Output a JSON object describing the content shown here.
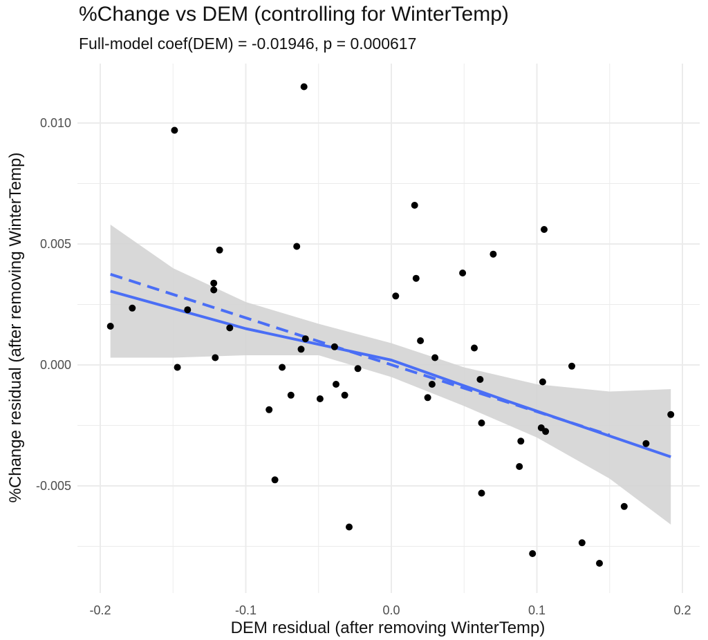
{
  "chart_data": {
    "type": "scatter",
    "title": "%Change vs DEM (controlling for WinterTemp)",
    "subtitle": "Full-model coef(DEM) = -0.01946, p = 0.000617",
    "xlabel": "DEM residual (after removing WinterTemp)",
    "ylabel": "%Change residual (after removing WinterTemp)",
    "xlim": [
      -0.2,
      0.2
    ],
    "ylim": [
      -0.0093,
      0.0125
    ],
    "x_ticks": [
      -0.2,
      -0.1,
      0.0,
      0.1,
      0.2
    ],
    "x_tick_labels": [
      "-0.2",
      "-0.1",
      "0.0",
      "0.1",
      "0.2"
    ],
    "y_ticks": [
      -0.005,
      0.0,
      0.005,
      0.01
    ],
    "y_tick_labels": [
      "-0.005",
      "0.000",
      "0.005",
      "0.010"
    ],
    "grid": true,
    "colors": {
      "points": "#000000",
      "fit_line": "#4a6ef5",
      "band": "#d4d4d4",
      "grid": "#ebebeb"
    },
    "points": [
      {
        "x": -0.193,
        "y": 0.0016
      },
      {
        "x": -0.178,
        "y": 0.00235
      },
      {
        "x": -0.149,
        "y": 0.0097
      },
      {
        "x": -0.147,
        "y": -0.0001
      },
      {
        "x": -0.14,
        "y": 0.00228
      },
      {
        "x": -0.122,
        "y": 0.00338
      },
      {
        "x": -0.122,
        "y": 0.0031
      },
      {
        "x": -0.121,
        "y": 0.0003
      },
      {
        "x": -0.118,
        "y": 0.00475
      },
      {
        "x": -0.111,
        "y": 0.00153
      },
      {
        "x": -0.084,
        "y": -0.00185
      },
      {
        "x": -0.08,
        "y": -0.00475
      },
      {
        "x": -0.075,
        "y": -0.0001
      },
      {
        "x": -0.069,
        "y": -0.00125
      },
      {
        "x": -0.065,
        "y": 0.0049
      },
      {
        "x": -0.062,
        "y": 0.00065
      },
      {
        "x": -0.059,
        "y": 0.00108
      },
      {
        "x": -0.06,
        "y": 0.0115
      },
      {
        "x": -0.049,
        "y": -0.0014
      },
      {
        "x": -0.039,
        "y": 0.00075
      },
      {
        "x": -0.038,
        "y": -0.0008
      },
      {
        "x": -0.032,
        "y": -0.00125
      },
      {
        "x": -0.029,
        "y": -0.0067
      },
      {
        "x": -0.023,
        "y": -0.00015
      },
      {
        "x": 0.003,
        "y": 0.00285
      },
      {
        "x": 0.016,
        "y": 0.0066
      },
      {
        "x": 0.017,
        "y": 0.00358
      },
      {
        "x": 0.02,
        "y": 0.001
      },
      {
        "x": 0.025,
        "y": -0.00135
      },
      {
        "x": 0.028,
        "y": -0.0008
      },
      {
        "x": 0.03,
        "y": 0.0003
      },
      {
        "x": 0.049,
        "y": 0.0038
      },
      {
        "x": 0.057,
        "y": 0.0007
      },
      {
        "x": 0.061,
        "y": -0.0006
      },
      {
        "x": 0.062,
        "y": -0.0024
      },
      {
        "x": 0.062,
        "y": -0.0053
      },
      {
        "x": 0.07,
        "y": 0.00458
      },
      {
        "x": 0.088,
        "y": -0.0042
      },
      {
        "x": 0.089,
        "y": -0.00315
      },
      {
        "x": 0.097,
        "y": -0.0078
      },
      {
        "x": 0.103,
        "y": -0.0026
      },
      {
        "x": 0.104,
        "y": -0.0007
      },
      {
        "x": 0.105,
        "y": 0.0056
      },
      {
        "x": 0.106,
        "y": -0.00275
      },
      {
        "x": 0.124,
        "y": -5e-05
      },
      {
        "x": 0.131,
        "y": -0.00735
      },
      {
        "x": 0.143,
        "y": -0.0082
      },
      {
        "x": 0.16,
        "y": -0.00585
      },
      {
        "x": 0.175,
        "y": -0.00325
      },
      {
        "x": 0.192,
        "y": -0.00205
      }
    ],
    "fit_line": [
      {
        "x": -0.193,
        "y": 0.00305
      },
      {
        "x": -0.1,
        "y": 0.0015
      },
      {
        "x": 0.0,
        "y": 0.0002
      },
      {
        "x": 0.08,
        "y": -0.0015
      },
      {
        "x": 0.192,
        "y": -0.0038
      }
    ],
    "linear_line": [
      {
        "x": -0.193,
        "y": 0.00375
      },
      {
        "x": 0.15,
        "y": -0.0029
      }
    ],
    "band_upper": [
      {
        "x": -0.193,
        "y": 0.0058
      },
      {
        "x": -0.15,
        "y": 0.004
      },
      {
        "x": -0.1,
        "y": 0.0026
      },
      {
        "x": -0.05,
        "y": 0.0017
      },
      {
        "x": 0.0,
        "y": 0.0009
      },
      {
        "x": 0.05,
        "y": -0.0001
      },
      {
        "x": 0.1,
        "y": -0.0008
      },
      {
        "x": 0.15,
        "y": -0.0011
      },
      {
        "x": 0.192,
        "y": -0.001
      }
    ],
    "band_lower": [
      {
        "x": -0.193,
        "y": 0.0003
      },
      {
        "x": -0.15,
        "y": 0.0003
      },
      {
        "x": -0.1,
        "y": 0.0004
      },
      {
        "x": -0.05,
        "y": 0.0004
      },
      {
        "x": 0.0,
        "y": -0.0005
      },
      {
        "x": 0.05,
        "y": -0.0017
      },
      {
        "x": 0.1,
        "y": -0.003
      },
      {
        "x": 0.15,
        "y": -0.0047
      },
      {
        "x": 0.192,
        "y": -0.0066
      }
    ]
  }
}
